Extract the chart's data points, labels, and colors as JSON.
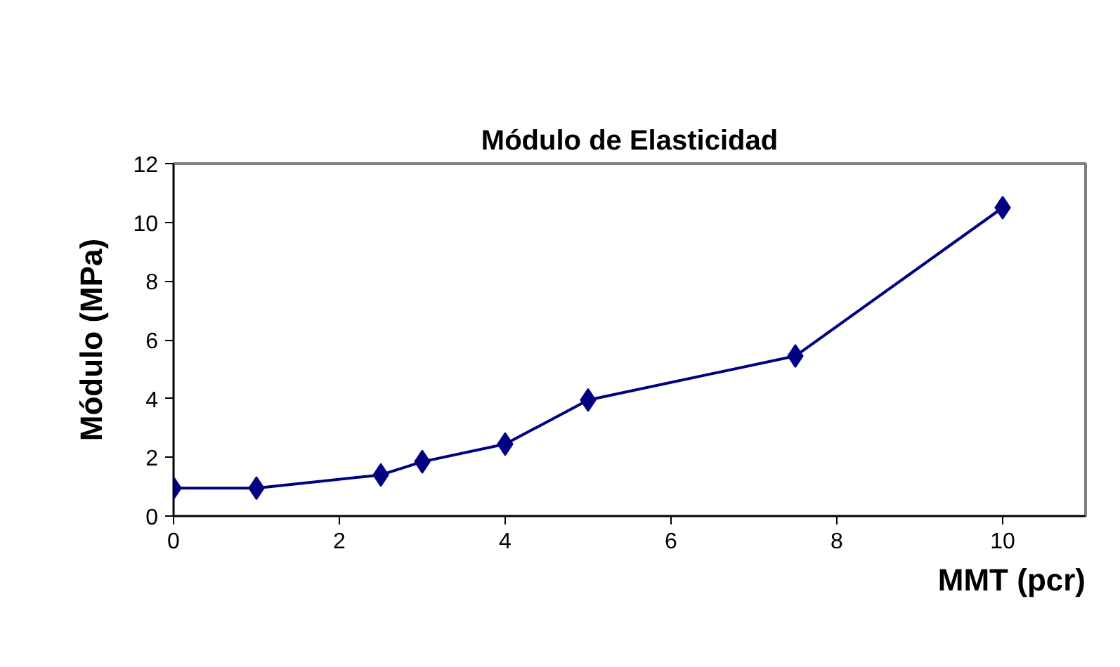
{
  "chart_data": {
    "type": "line",
    "title": "Módulo de Elasticidad",
    "xlabel": "MMT (pcr)",
    "ylabel": "Módulo (MPa)",
    "x": [
      0,
      1,
      2.5,
      3,
      4,
      5,
      7.5,
      10
    ],
    "series": [
      {
        "color": "#000080",
        "values": [
          0.95,
          0.95,
          1.4,
          1.85,
          2.45,
          3.95,
          5.45,
          10.5
        ]
      }
    ],
    "xlim": [
      0,
      11
    ],
    "xticks": [
      0,
      2,
      4,
      6,
      8,
      10
    ],
    "ylim": [
      0,
      12
    ],
    "yticks": [
      0,
      2,
      4,
      6,
      8,
      10,
      12
    ],
    "marker": "diamond",
    "line_style": "solid"
  }
}
